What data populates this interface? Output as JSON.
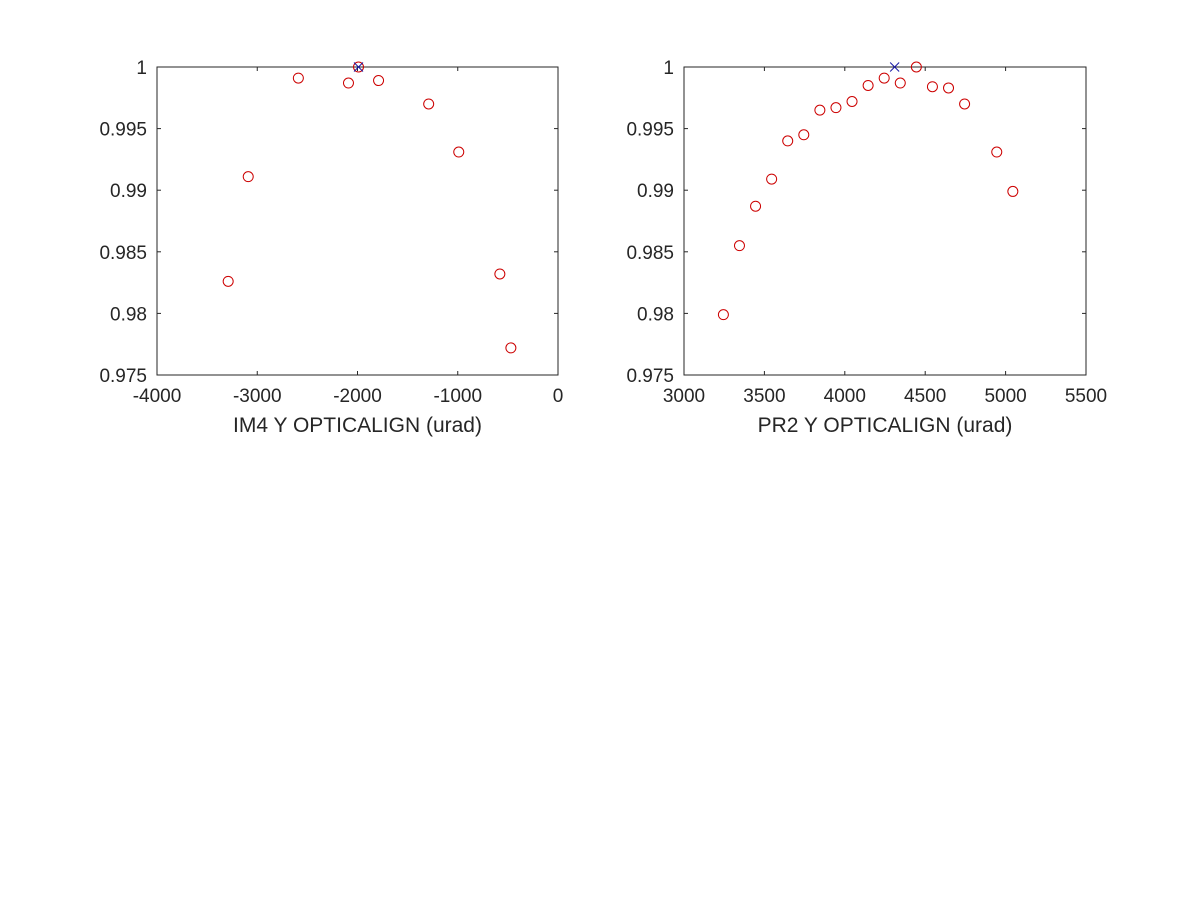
{
  "chart_data": [
    {
      "type": "scatter",
      "title": "",
      "xlabel": "IM4 Y OPTICALIGN (urad)",
      "ylabel": "",
      "xlim": [
        -4000,
        0
      ],
      "ylim": [
        0.975,
        1
      ],
      "grid": false,
      "xticks": [
        "-4000",
        "-3000",
        "-2000",
        "-1000",
        "0"
      ],
      "yticks": [
        "0.975",
        "0.98",
        "0.985",
        "0.99",
        "0.995",
        "1"
      ],
      "series": [
        {
          "marker": "circle",
          "color": "#cc0000",
          "points": [
            {
              "x": -3290,
              "y": 0.9826
            },
            {
              "x": -3090,
              "y": 0.9911
            },
            {
              "x": -2590,
              "y": 0.9991
            },
            {
              "x": -2090,
              "y": 0.9987
            },
            {
              "x": -1990,
              "y": 1.0
            },
            {
              "x": -1790,
              "y": 0.9989
            },
            {
              "x": -1290,
              "y": 0.997
            },
            {
              "x": -990,
              "y": 0.9931
            },
            {
              "x": -580,
              "y": 0.9832
            },
            {
              "x": -470,
              "y": 0.9772
            }
          ]
        },
        {
          "marker": "x",
          "color": "#1a1aa6",
          "points": [
            {
              "x": -1990,
              "y": 1.0
            }
          ]
        }
      ]
    },
    {
      "type": "scatter",
      "title": "",
      "xlabel": "PR2 Y OPTICALIGN (urad)",
      "ylabel": "",
      "xlim": [
        3000,
        5500
      ],
      "ylim": [
        0.975,
        1
      ],
      "grid": false,
      "xticks": [
        "3000",
        "3500",
        "4000",
        "4500",
        "5000",
        "5500"
      ],
      "yticks": [
        "0.975",
        "0.98",
        "0.985",
        "0.99",
        "0.995",
        "1"
      ],
      "series": [
        {
          "marker": "circle",
          "color": "#cc0000",
          "points": [
            {
              "x": 3245,
              "y": 0.9799
            },
            {
              "x": 3345,
              "y": 0.9855
            },
            {
              "x": 3445,
              "y": 0.9887
            },
            {
              "x": 3545,
              "y": 0.9909
            },
            {
              "x": 3645,
              "y": 0.994
            },
            {
              "x": 3745,
              "y": 0.9945
            },
            {
              "x": 3845,
              "y": 0.9965
            },
            {
              "x": 3945,
              "y": 0.9967
            },
            {
              "x": 4045,
              "y": 0.9972
            },
            {
              "x": 4145,
              "y": 0.9985
            },
            {
              "x": 4245,
              "y": 0.9991
            },
            {
              "x": 4345,
              "y": 0.9987
            },
            {
              "x": 4445,
              "y": 1.0
            },
            {
              "x": 4545,
              "y": 0.9984
            },
            {
              "x": 4645,
              "y": 0.9983
            },
            {
              "x": 4745,
              "y": 0.997
            },
            {
              "x": 4945,
              "y": 0.9931
            },
            {
              "x": 5045,
              "y": 0.9899
            }
          ]
        },
        {
          "marker": "x",
          "color": "#1a1aa6",
          "points": [
            {
              "x": 4310,
              "y": 1.0
            }
          ]
        }
      ]
    }
  ]
}
